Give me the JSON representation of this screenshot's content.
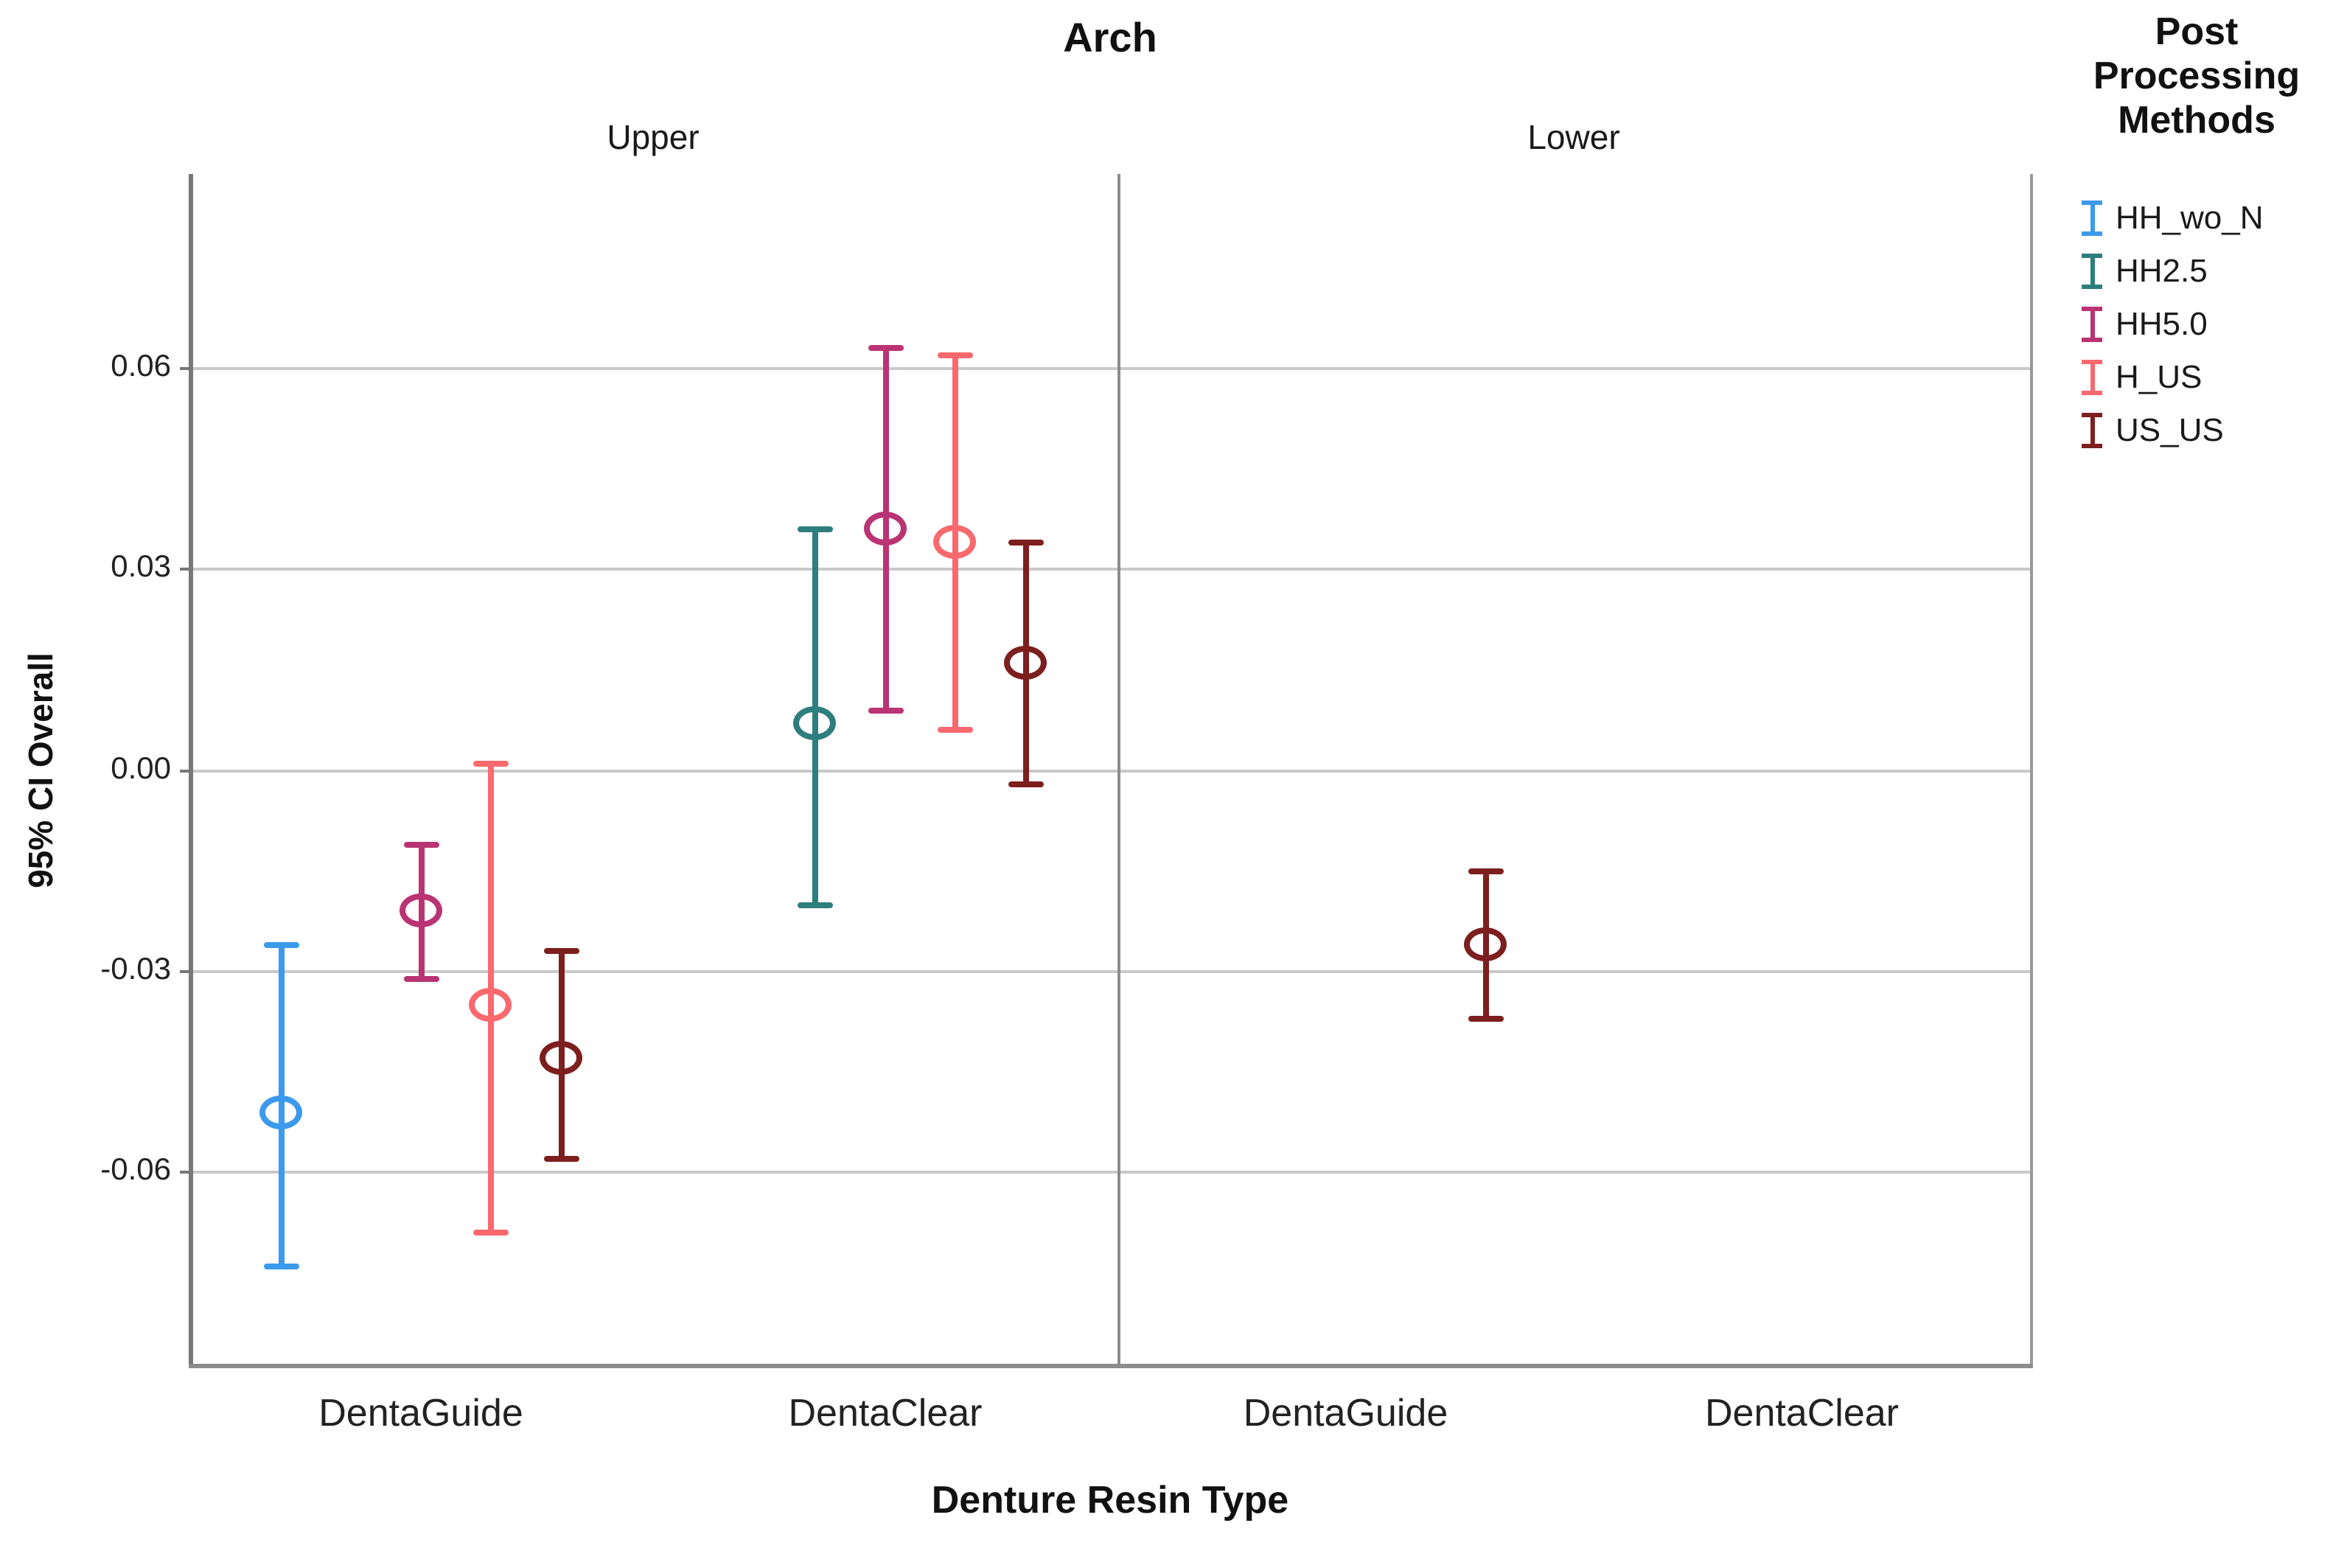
{
  "chart_data": {
    "type": "errorbar",
    "title": "Arch",
    "xlabel": "Denture Resin Type",
    "ylabel": "95% CI Overall",
    "legend_title": "Post Processing Methods",
    "panels": [
      "Upper",
      "Lower"
    ],
    "categories": [
      "DentaGuide",
      "DentaClear"
    ],
    "ytick_labels": [
      "0.06",
      "0.03",
      "0.00",
      "-0.03",
      "-0.06"
    ],
    "yticks": [
      0.06,
      0.03,
      0.0,
      -0.03,
      -0.06
    ],
    "ylim": [
      -0.0885,
      0.089
    ],
    "grid": true,
    "legend_position": "top-right",
    "series": [
      {
        "name": "HH_wo_N",
        "color": "#3c9aec",
        "points": [
          {
            "panel": "Upper",
            "category": "DentaGuide",
            "mean": -0.051,
            "lo": -0.074,
            "hi": -0.026
          }
        ]
      },
      {
        "name": "HH2.5",
        "color": "#2e7e7e",
        "points": [
          {
            "panel": "Upper",
            "category": "DentaClear",
            "mean": 0.007,
            "lo": -0.02,
            "hi": 0.036
          }
        ]
      },
      {
        "name": "HH5.0",
        "color": "#ba3373",
        "points": [
          {
            "panel": "Upper",
            "category": "DentaGuide",
            "mean": -0.021,
            "lo": -0.031,
            "hi": -0.011
          },
          {
            "panel": "Upper",
            "category": "DentaClear",
            "mean": 0.036,
            "lo": 0.009,
            "hi": 0.063
          }
        ]
      },
      {
        "name": "H_US",
        "color": "#f9696e",
        "points": [
          {
            "panel": "Upper",
            "category": "DentaGuide",
            "mean": -0.035,
            "lo": -0.069,
            "hi": 0.001
          },
          {
            "panel": "Upper",
            "category": "DentaClear",
            "mean": 0.034,
            "lo": 0.006,
            "hi": 0.062
          }
        ]
      },
      {
        "name": "US_US",
        "color": "#7d1f1f",
        "points": [
          {
            "panel": "Upper",
            "category": "DentaGuide",
            "mean": -0.043,
            "lo": -0.058,
            "hi": -0.027
          },
          {
            "panel": "Upper",
            "category": "DentaClear",
            "mean": 0.016,
            "lo": -0.002,
            "hi": 0.034
          },
          {
            "panel": "Lower",
            "category": "DentaGuide",
            "mean": -0.026,
            "lo": -0.037,
            "hi": -0.015
          }
        ]
      }
    ]
  }
}
